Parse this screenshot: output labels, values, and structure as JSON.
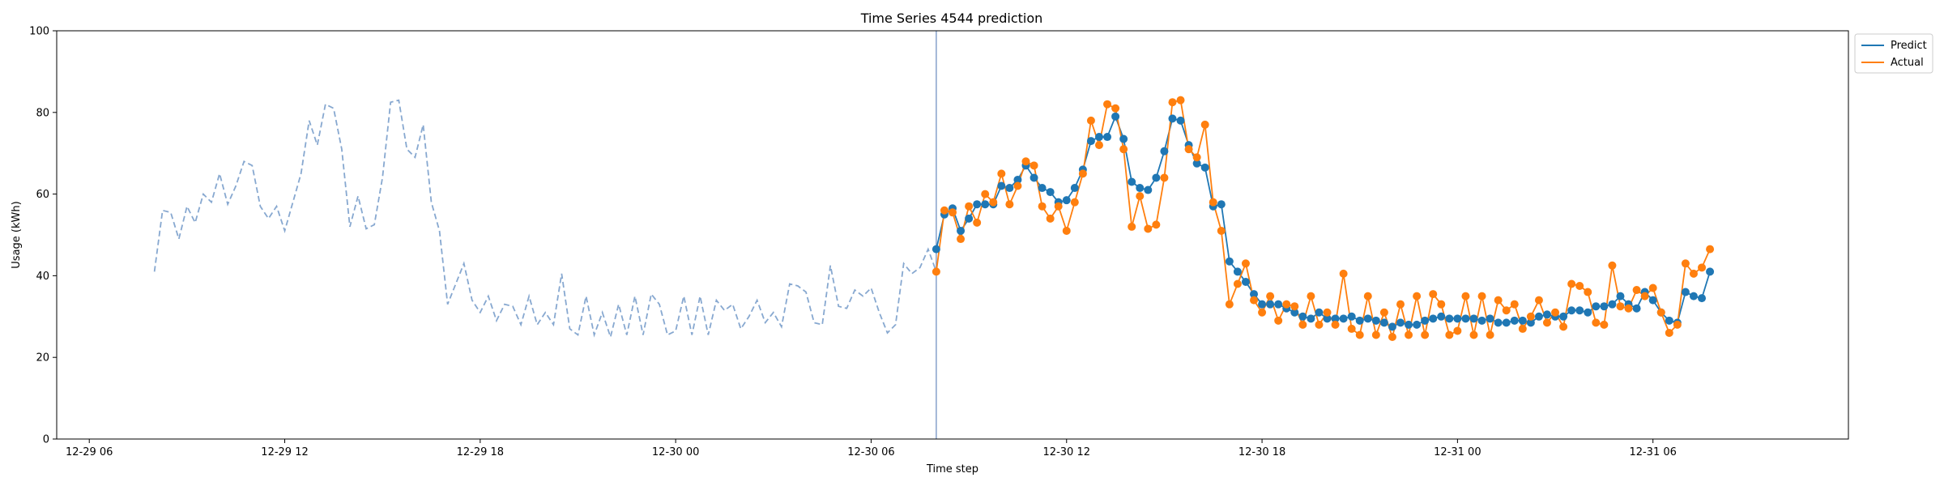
{
  "chart_data": {
    "type": "line",
    "title": "Time Series 4544 prediction",
    "xlabel": "Time step",
    "ylabel": "Usage (kWh)",
    "ylim": [
      0,
      100
    ],
    "yticks": [
      0,
      20,
      40,
      60,
      80,
      100
    ],
    "xlim": [
      "12-29 05:00",
      "12-31 12:00"
    ],
    "xticks": [
      "12-29 06",
      "12-29 12",
      "12-29 18",
      "12-30 00",
      "12-30 06",
      "12-30 12",
      "12-30 18",
      "12-31 00",
      "12-31 06"
    ],
    "legend_position": "top-right, outside",
    "divider_x": "12-30 08:00",
    "colors": {
      "history": "#87A8D0",
      "predict": "#1F77B4",
      "actual": "#FF7F0E",
      "divider": "#7D9AC8"
    },
    "history": {
      "start": "12-29 08:00",
      "step_minutes": 15,
      "values": [
        41,
        56,
        55.5,
        49,
        57,
        53,
        60,
        58,
        65,
        57.5,
        62,
        68,
        67,
        57,
        54,
        57,
        51,
        58,
        65,
        78,
        72,
        82,
        81,
        71,
        52,
        59.5,
        51.5,
        52.5,
        64,
        82.5,
        83,
        71,
        69,
        77,
        58,
        51,
        33,
        38,
        43,
        34,
        31,
        35,
        29,
        33,
        32.5,
        28,
        35,
        28,
        31,
        28,
        40.5,
        27,
        25.5,
        35,
        25.5,
        31,
        25,
        33,
        25.5,
        35,
        25.5,
        35.5,
        33,
        25.5,
        26.5,
        35,
        25.5,
        35,
        25.5,
        34,
        31.5,
        33,
        27,
        30,
        34,
        28.5,
        31,
        27.5,
        38,
        37.5,
        36,
        28.5,
        28,
        42.5,
        32.5,
        32,
        36.5,
        35,
        37,
        31,
        26,
        28,
        43,
        40.5,
        42,
        46.5,
        41
      ]
    },
    "series": [
      {
        "name": "Predict",
        "start": "12-30 08:00",
        "step_minutes": 15,
        "values": [
          46.5,
          55,
          56.5,
          51,
          54,
          57.5,
          57.5,
          57.5,
          62,
          61.5,
          63.5,
          67,
          64,
          61.5,
          60.5,
          58,
          58.5,
          61.5,
          66,
          73,
          74,
          74,
          79,
          73.5,
          63,
          61.5,
          61,
          64,
          70.5,
          78.5,
          78,
          72,
          67.5,
          66.5,
          57,
          57.5,
          43.5,
          41,
          38.5,
          35.5,
          33,
          33,
          33,
          32,
          31,
          30,
          29.5,
          31,
          29.5,
          29.5,
          29.5,
          30,
          29,
          29.5,
          29,
          28.5,
          27.5,
          28.5,
          28,
          28,
          29,
          29.5,
          30,
          29.5,
          29.5,
          29.5,
          29.5,
          29,
          29.5,
          28.5,
          28.5,
          29,
          29,
          28.5,
          30,
          30.5,
          30,
          30,
          31.5,
          31.5,
          31,
          32.5,
          32.5,
          33,
          35,
          33,
          32,
          36,
          34,
          31,
          29,
          28.5,
          36,
          35,
          34.5,
          41
        ]
      },
      {
        "name": "Actual",
        "start": "12-30 08:00",
        "step_minutes": 15,
        "values": [
          41,
          56,
          55.5,
          49,
          57,
          53,
          60,
          58,
          65,
          57.5,
          62,
          68,
          67,
          57,
          54,
          57,
          51,
          58,
          65,
          78,
          72,
          82,
          81,
          71,
          52,
          59.5,
          51.5,
          52.5,
          64,
          82.5,
          83,
          71,
          69,
          77,
          58,
          51,
          33,
          38,
          43,
          34,
          31,
          35,
          29,
          33,
          32.5,
          28,
          35,
          28,
          31,
          28,
          40.5,
          27,
          25.5,
          35,
          25.5,
          31,
          25,
          33,
          25.5,
          35,
          25.5,
          35.5,
          33,
          25.5,
          26.5,
          35,
          25.5,
          35,
          25.5,
          34,
          31.5,
          33,
          27,
          30,
          34,
          28.5,
          31,
          27.5,
          38,
          37.5,
          36,
          28.5,
          28,
          42.5,
          32.5,
          32,
          36.5,
          35,
          37,
          31,
          26,
          28,
          43,
          40.5,
          42,
          46.5
        ]
      }
    ]
  }
}
